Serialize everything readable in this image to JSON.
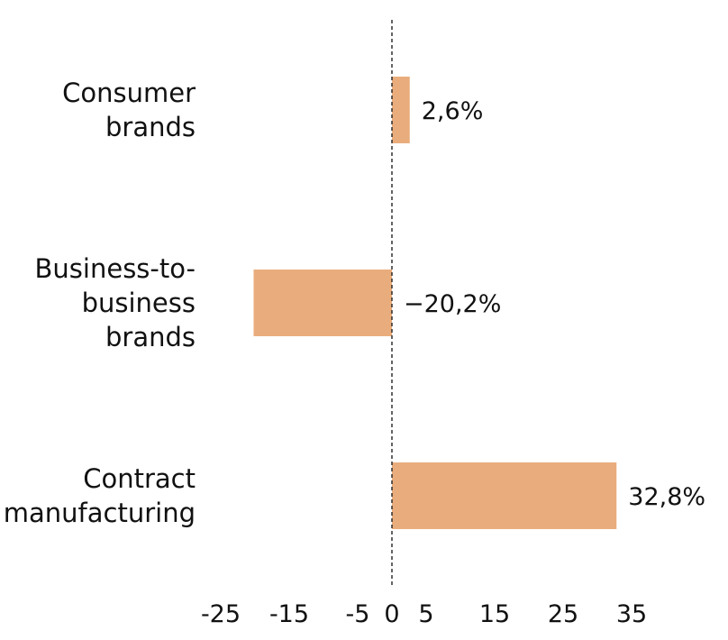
{
  "chart_data": {
    "type": "bar",
    "orientation": "horizontal",
    "categories": [
      [
        "Consumer",
        "brands"
      ],
      [
        "Business-to-",
        "business",
        "brands"
      ],
      [
        "Contract",
        "manufacturing"
      ]
    ],
    "values": [
      2.6,
      -20.2,
      32.8
    ],
    "value_labels": [
      "2,6%",
      "−20,2%",
      "32,8%"
    ],
    "x_ticks": [
      "-25",
      "-15",
      "-5",
      "0",
      "5",
      "15",
      "25",
      "35"
    ],
    "x_tick_values": [
      -25,
      -15,
      -5,
      0,
      5,
      15,
      25,
      35
    ],
    "xlim": [
      -30,
      40
    ],
    "title": "",
    "xlabel": "",
    "ylabel": "",
    "grid": false,
    "legend": "none",
    "bar_color": "#e9ad7d",
    "zero_line_color": "#222222"
  }
}
